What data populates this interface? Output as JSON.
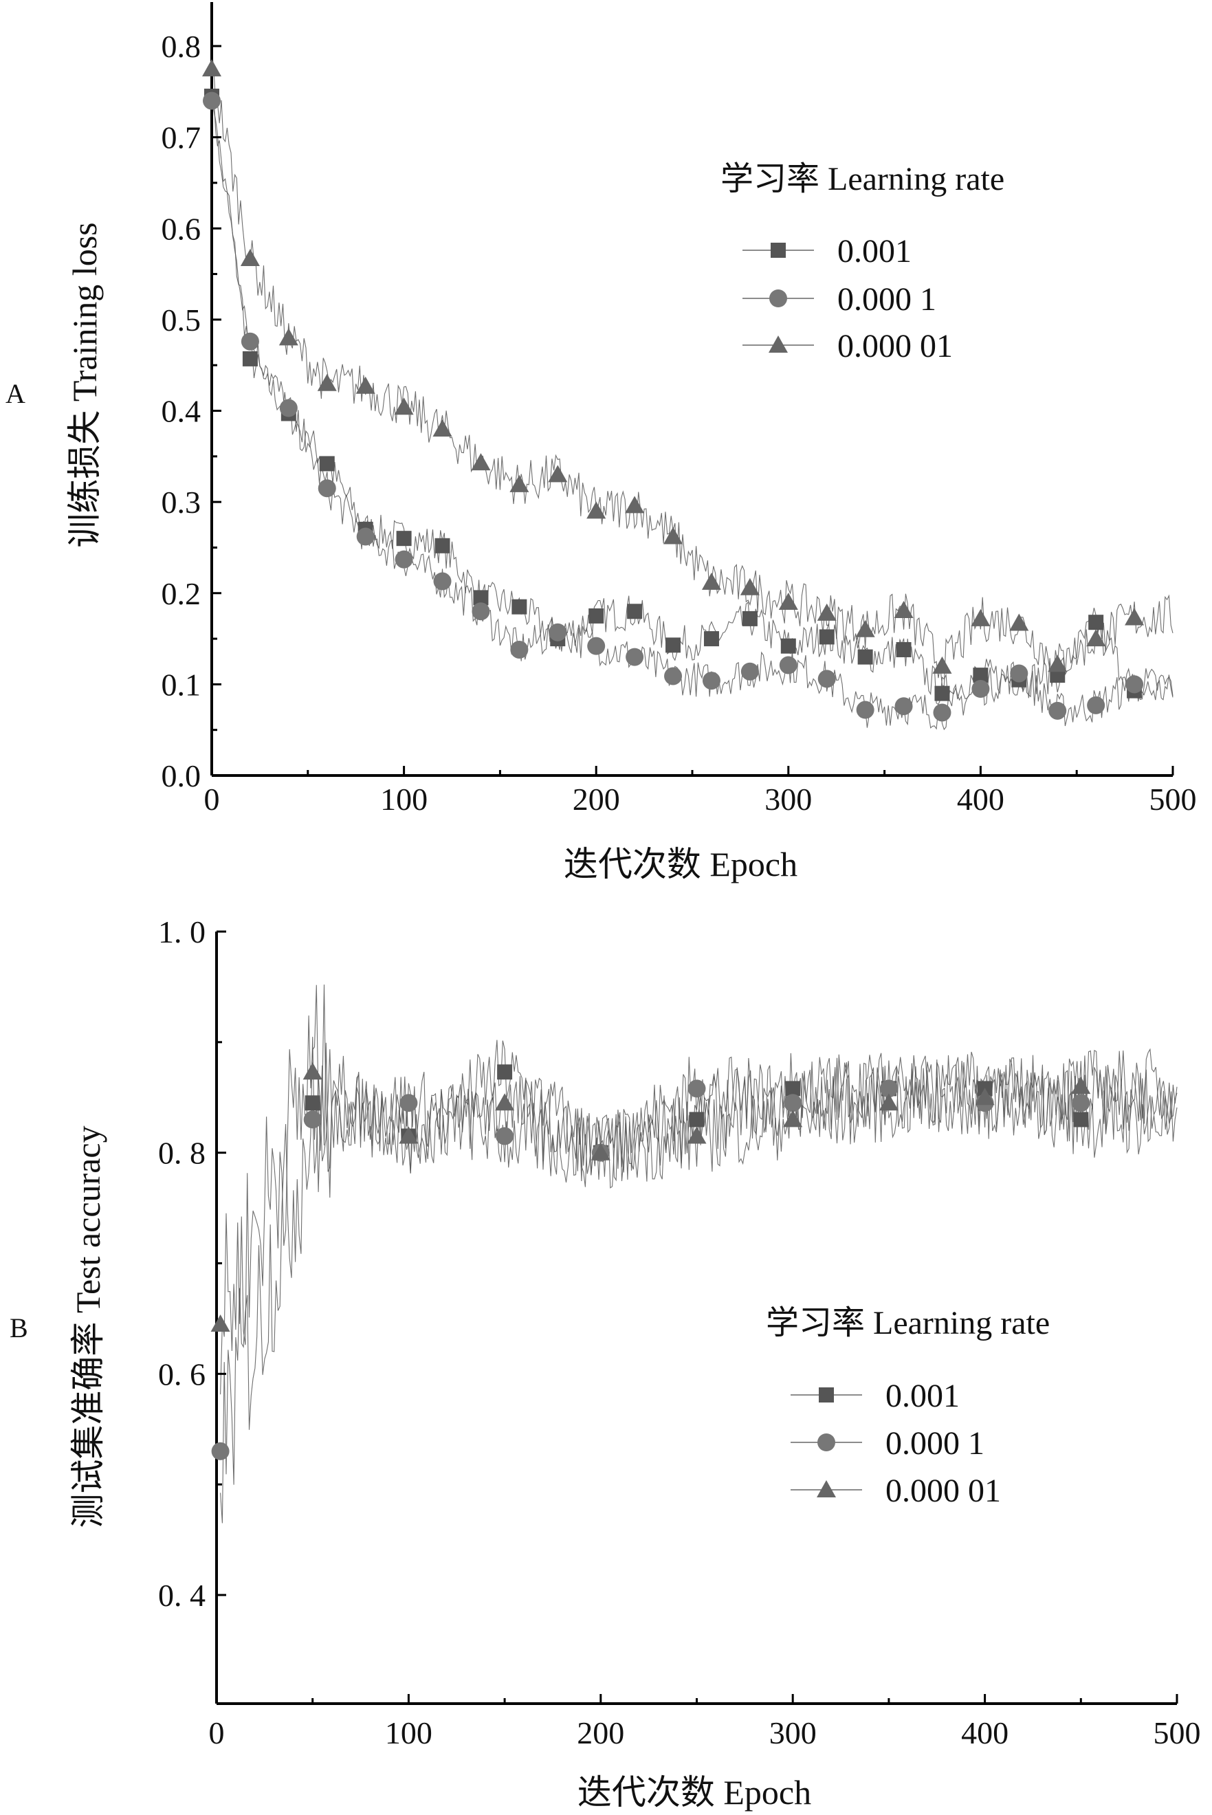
{
  "chart_data": [
    {
      "panel": "A",
      "type": "line",
      "xlabel": "迭代次数 Epoch",
      "ylabel": "训练损失 Training loss",
      "xlim": [
        0,
        500
      ],
      "ylim": [
        0,
        0.85
      ],
      "xticks": [
        0,
        100,
        200,
        300,
        400,
        500
      ],
      "xtick_labels": [
        "0",
        "100",
        "200",
        "300",
        "400",
        "500"
      ],
      "yticks": [
        0,
        0.1,
        0.2,
        0.3,
        0.4,
        0.5,
        0.6,
        0.7,
        0.8
      ],
      "ytick_labels": [
        "0.0",
        "0.1",
        "0.2",
        "0.3",
        "0.4",
        "0.5",
        "0.6",
        "0.7",
        "0.8"
      ],
      "legend_title": "学习率 Learning rate",
      "legend_position": "top-right",
      "grid": false,
      "series": [
        {
          "name": "0.001",
          "marker": "square",
          "color": "#555555",
          "noise": 0.02,
          "x": [
            0,
            20,
            40,
            60,
            80,
            100,
            120,
            140,
            160,
            180,
            200,
            220,
            240,
            260,
            280,
            300,
            320,
            340,
            360,
            380,
            400,
            420,
            440,
            460,
            480
          ],
          "y": [
            0.745,
            0.457,
            0.397,
            0.342,
            0.27,
            0.26,
            0.252,
            0.195,
            0.185,
            0.15,
            0.175,
            0.18,
            0.143,
            0.15,
            0.172,
            0.142,
            0.152,
            0.13,
            0.138,
            0.09,
            0.11,
            0.105,
            0.11,
            0.168,
            0.093
          ]
        },
        {
          "name": "0.000 1",
          "marker": "circle",
          "color": "#777777",
          "noise": 0.02,
          "x": [
            0,
            20,
            40,
            60,
            80,
            100,
            120,
            140,
            160,
            180,
            200,
            220,
            240,
            260,
            280,
            300,
            320,
            340,
            360,
            380,
            400,
            420,
            440,
            460,
            480
          ],
          "y": [
            0.74,
            0.476,
            0.403,
            0.315,
            0.262,
            0.237,
            0.213,
            0.18,
            0.138,
            0.157,
            0.142,
            0.13,
            0.109,
            0.104,
            0.114,
            0.121,
            0.106,
            0.072,
            0.076,
            0.069,
            0.095,
            0.112,
            0.071,
            0.077,
            0.1
          ]
        },
        {
          "name": "0.000 01",
          "marker": "triangle",
          "color": "#666666",
          "noise": 0.025,
          "x": [
            0,
            20,
            40,
            60,
            80,
            100,
            120,
            140,
            160,
            180,
            200,
            220,
            240,
            260,
            280,
            300,
            320,
            340,
            360,
            380,
            400,
            420,
            440,
            460,
            480
          ],
          "y": [
            0.775,
            0.567,
            0.48,
            0.43,
            0.427,
            0.404,
            0.38,
            0.343,
            0.319,
            0.33,
            0.29,
            0.296,
            0.262,
            0.212,
            0.206,
            0.19,
            0.178,
            0.16,
            0.181,
            0.12,
            0.172,
            0.167,
            0.122,
            0.15,
            0.173
          ]
        }
      ]
    },
    {
      "panel": "B",
      "type": "line",
      "xlabel": "迭代次数 Epoch",
      "ylabel": "测试集准确率 Test accuracy",
      "xlim": [
        0,
        500
      ],
      "ylim": [
        0.3,
        1.0
      ],
      "xticks": [
        0,
        100,
        200,
        300,
        400,
        500
      ],
      "xtick_labels": [
        "0",
        "100",
        "200",
        "300",
        "400",
        "500"
      ],
      "yticks": [
        0.4,
        0.6,
        0.8,
        1.0
      ],
      "ytick_labels": [
        "0. 4",
        "0. 6",
        "0. 8",
        "1. 0"
      ],
      "legend_title": "学习率 Learning rate",
      "legend_position": "center-right",
      "grid": false,
      "series": [
        {
          "name": "0.001",
          "marker": "square",
          "color": "#555555",
          "noise": 0.035,
          "x": [
            50,
            100,
            150,
            200,
            250,
            300,
            350,
            400,
            450
          ],
          "y": [
            0.845,
            0.815,
            0.873,
            0.8,
            0.83,
            0.858,
            0.858,
            0.858,
            0.83
          ]
        },
        {
          "name": "0.000 1",
          "marker": "circle",
          "color": "#777777",
          "noise": 0.035,
          "x": [
            2,
            50,
            100,
            150,
            200,
            250,
            300,
            350,
            400,
            450
          ],
          "y": [
            0.53,
            0.83,
            0.845,
            0.815,
            0.8,
            0.858,
            0.845,
            0.858,
            0.845,
            0.845
          ]
        },
        {
          "name": "0.000 01",
          "marker": "triangle",
          "color": "#666666",
          "noise": 0.035,
          "x": [
            2,
            50,
            100,
            150,
            200,
            250,
            300,
            350,
            400,
            450
          ],
          "y": [
            0.645,
            0.873,
            0.815,
            0.845,
            0.8,
            0.815,
            0.83,
            0.845,
            0.85,
            0.86
          ]
        }
      ]
    }
  ]
}
